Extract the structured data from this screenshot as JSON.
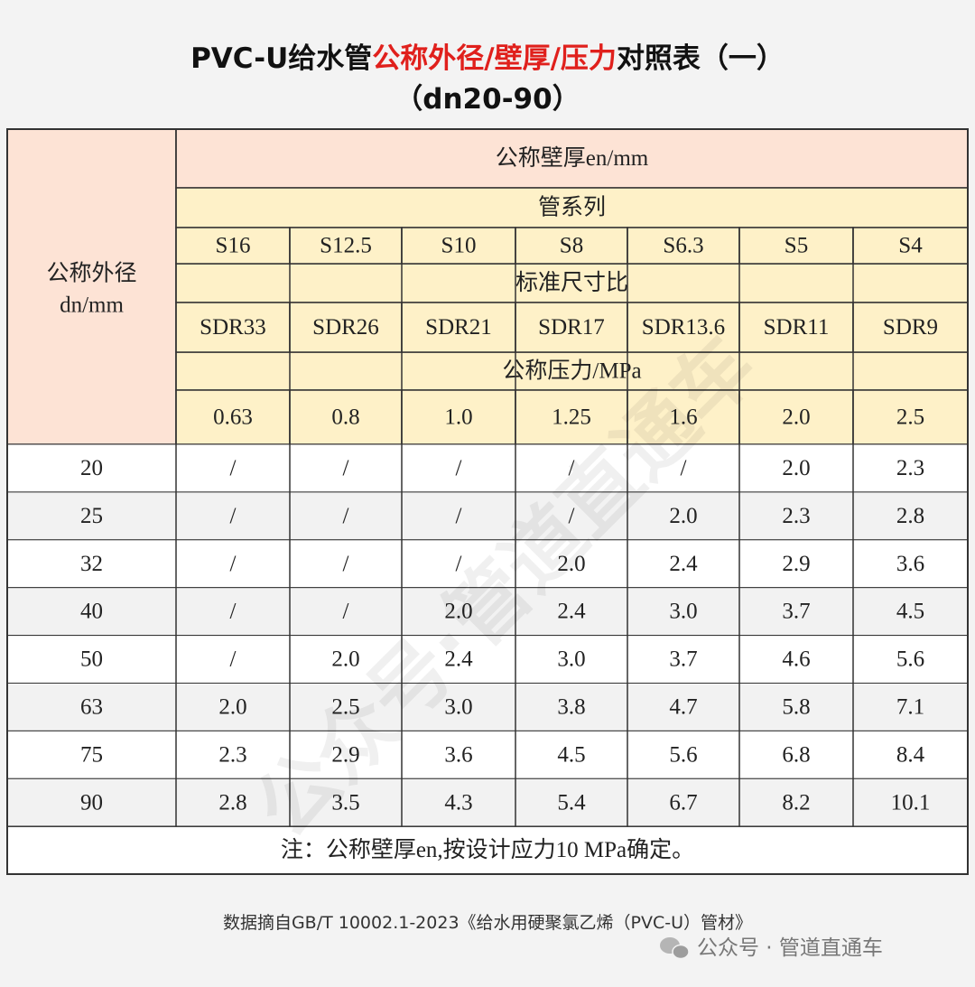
{
  "title": {
    "line1": [
      "PVC-U给水管",
      "公称外径/壁厚/压力",
      "对照表（一）"
    ],
    "line2": "（dn20-90）"
  },
  "table": {
    "corner": [
      "公称外径",
      "dn/mm"
    ],
    "header": {
      "wall": "公称壁厚en/mm",
      "series_label": "管系列",
      "series": [
        "S16",
        "S12.5",
        "S10",
        "S8",
        "S6.3",
        "S5",
        "S4"
      ],
      "sdr_label": "标准尺寸比",
      "sdr": [
        "SDR33",
        "SDR26",
        "SDR21",
        "SDR17",
        "SDR13.6",
        "SDR11",
        "SDR9"
      ],
      "pressure_label": "公称压力/MPa",
      "pressure": [
        "0.63",
        "0.8",
        "1.0",
        "1.25",
        "1.6",
        "2.0",
        "2.5"
      ]
    },
    "rows": [
      [
        "20",
        "/",
        "/",
        "/",
        "/",
        "/",
        "2.0",
        "2.3"
      ],
      [
        "25",
        "/",
        "/",
        "/",
        "/",
        "2.0",
        "2.3",
        "2.8"
      ],
      [
        "32",
        "/",
        "/",
        "/",
        "2.0",
        "2.4",
        "2.9",
        "3.6"
      ],
      [
        "40",
        "/",
        "/",
        "2.0",
        "2.4",
        "3.0",
        "3.7",
        "4.5"
      ],
      [
        "50",
        "/",
        "2.0",
        "2.4",
        "3.0",
        "3.7",
        "4.6",
        "5.6"
      ],
      [
        "63",
        "2.0",
        "2.5",
        "3.0",
        "3.8",
        "4.7",
        "5.8",
        "7.1"
      ],
      [
        "75",
        "2.3",
        "2.9",
        "3.6",
        "4.5",
        "5.6",
        "6.8",
        "8.4"
      ],
      [
        "90",
        "2.8",
        "3.5",
        "4.3",
        "5.4",
        "6.7",
        "8.2",
        "10.1"
      ]
    ],
    "note": "注：公称壁厚en,按设计应力10 MPa确定。"
  },
  "watermark": "公众号·管道直通车",
  "footer": {
    "source": "数据摘自GB/T 10002.1-2023《给水用硬聚氯乙烯（PVC-U）管材》",
    "account": "公众号 · 管道直通车"
  }
}
